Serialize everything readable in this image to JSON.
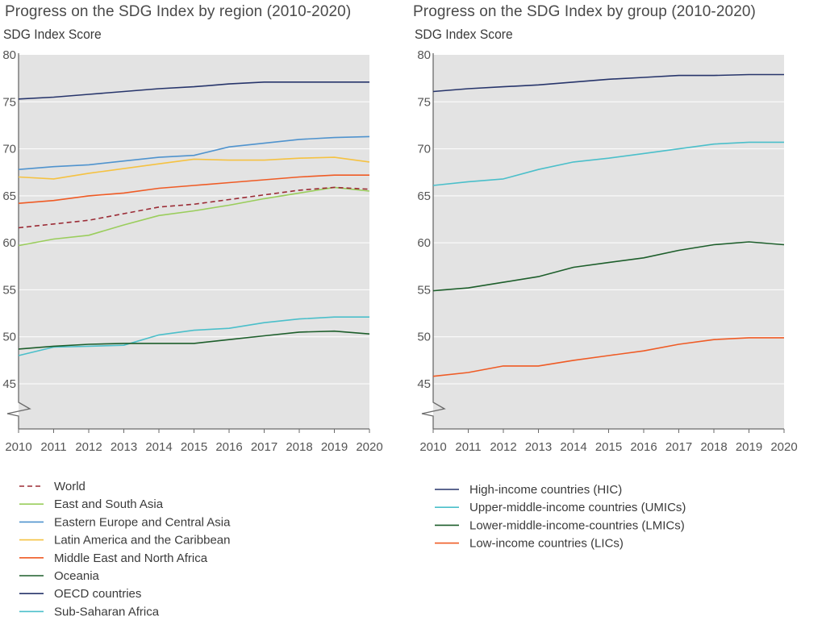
{
  "colors": {
    "plot_bg": "#e3e3e3",
    "gridline": "#ffffff",
    "axis": "#6a6a6a"
  },
  "chart_data": [
    {
      "type": "line",
      "title": "Progress on the SDG Index by region (2010-2020)",
      "ylabel": "SDG Index Score",
      "xlabel": "",
      "x": [
        2010,
        2011,
        2012,
        2013,
        2014,
        2015,
        2016,
        2017,
        2018,
        2019,
        2020
      ],
      "ylim": [
        40,
        80
      ],
      "yticks": [
        45,
        50,
        55,
        60,
        65,
        70,
        75,
        80
      ],
      "y_axis_break": true,
      "grid": "horizontal",
      "legend_position": "bottom",
      "series": [
        {
          "name": "World",
          "color": "#9b2b35",
          "dashed": true,
          "values": [
            61.6,
            62.0,
            62.4,
            63.1,
            63.8,
            64.1,
            64.6,
            65.1,
            65.6,
            65.9,
            65.7
          ]
        },
        {
          "name": "East and South Asia",
          "color": "#9acd5c",
          "dashed": false,
          "values": [
            59.7,
            60.4,
            60.8,
            61.9,
            62.9,
            63.4,
            64.0,
            64.7,
            65.3,
            65.9,
            65.5
          ]
        },
        {
          "name": "Eastern Europe and Central Asia",
          "color": "#4f93ce",
          "dashed": false,
          "values": [
            67.8,
            68.1,
            68.3,
            68.7,
            69.1,
            69.3,
            70.2,
            70.6,
            71.0,
            71.2,
            71.3
          ]
        },
        {
          "name": "Latin America and the Caribbean",
          "color": "#f5c242",
          "dashed": false,
          "values": [
            67.0,
            66.8,
            67.4,
            67.9,
            68.4,
            68.9,
            68.8,
            68.8,
            69.0,
            69.1,
            68.6
          ]
        },
        {
          "name": "Middle East and North Africa",
          "color": "#ef5b25",
          "dashed": false,
          "values": [
            64.2,
            64.5,
            65.0,
            65.3,
            65.8,
            66.1,
            66.4,
            66.7,
            67.0,
            67.2,
            67.2
          ]
        },
        {
          "name": "Oceania",
          "color": "#1d5e2b",
          "dashed": false,
          "values": [
            48.7,
            49.0,
            49.2,
            49.3,
            49.3,
            49.3,
            49.7,
            50.1,
            50.5,
            50.6,
            50.3
          ]
        },
        {
          "name": "OECD countries",
          "color": "#27356b",
          "dashed": false,
          "values": [
            75.3,
            75.5,
            75.8,
            76.1,
            76.4,
            76.6,
            76.9,
            77.1,
            77.1,
            77.1,
            77.1
          ]
        },
        {
          "name": "Sub-Saharan Africa",
          "color": "#4bbfca",
          "dashed": false,
          "values": [
            48.0,
            48.9,
            49.0,
            49.1,
            50.2,
            50.7,
            50.9,
            51.5,
            51.9,
            52.1,
            52.1
          ]
        }
      ]
    },
    {
      "type": "line",
      "title": "Progress on the SDG Index by group (2010-2020)",
      "ylabel": "SDG Index Score",
      "xlabel": "",
      "x": [
        2010,
        2011,
        2012,
        2013,
        2014,
        2015,
        2016,
        2017,
        2018,
        2019,
        2020
      ],
      "ylim": [
        40,
        80
      ],
      "yticks": [
        45,
        50,
        55,
        60,
        65,
        70,
        75,
        80
      ],
      "y_axis_break": true,
      "grid": "horizontal",
      "legend_position": "bottom",
      "series": [
        {
          "name": "High-income countries (HIC)",
          "color": "#27356b",
          "dashed": false,
          "values": [
            76.1,
            76.4,
            76.6,
            76.8,
            77.1,
            77.4,
            77.6,
            77.8,
            77.8,
            77.9,
            77.9
          ]
        },
        {
          "name": "Upper-middle-income countries (UMICs)",
          "color": "#4bbfca",
          "dashed": false,
          "values": [
            66.1,
            66.5,
            66.8,
            67.8,
            68.6,
            69.0,
            69.5,
            70.0,
            70.5,
            70.7,
            70.7
          ]
        },
        {
          "name": "Lower-middle-income-countries (LMICs)",
          "color": "#1d5e2b",
          "dashed": false,
          "values": [
            54.9,
            55.2,
            55.8,
            56.4,
            57.4,
            57.9,
            58.4,
            59.2,
            59.8,
            60.1,
            59.8
          ]
        },
        {
          "name": "Low-income countries (LICs)",
          "color": "#ef5b25",
          "dashed": false,
          "values": [
            45.8,
            46.2,
            46.9,
            46.9,
            47.5,
            48.0,
            48.5,
            49.2,
            49.7,
            49.9,
            49.9
          ]
        }
      ]
    }
  ]
}
